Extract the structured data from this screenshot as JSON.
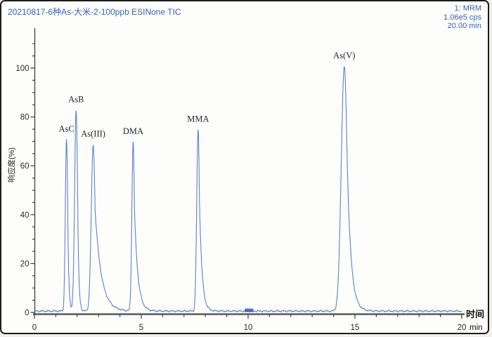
{
  "header": {
    "title": "20210817-6种As-大米-2-100ppb ESINone TIC",
    "info_lines": [
      "1: MRM",
      "1.06e5 cps",
      "20.00 min"
    ]
  },
  "colors": {
    "curve": "#5b82c8",
    "header_text": "#3a62b5",
    "axis": "#5a5a5a",
    "marker": "#3c55b8"
  },
  "chart_data": {
    "type": "line",
    "title": "20210817-6种As-大米-2-100ppb ESINone TIC",
    "experiment": "1: MRM",
    "max_intensity": "1.06e5 cps",
    "run_time": "20.00 min",
    "xlabel": "时间",
    "x_unit": "min",
    "ylabel": "响应度(%)",
    "xlim": [
      0,
      20
    ],
    "ylim": [
      0,
      110
    ],
    "x_major_ticks": [
      0,
      5,
      10,
      15,
      20
    ],
    "x_minor_step": 1,
    "y_major_ticks": [
      0,
      20,
      40,
      60,
      80,
      100
    ],
    "y_minor_step": 5,
    "grid": false,
    "legend_position": "none",
    "baseline_pct": 0.55,
    "peaks": [
      {
        "name": "AsC",
        "rt_min": 1.5,
        "height_pct": 70,
        "sigma": 0.055,
        "tau": 0.05
      },
      {
        "name": "AsB",
        "rt_min": 1.95,
        "height_pct": 82,
        "sigma": 0.07,
        "tau": 0.05
      },
      {
        "name": "As(III)",
        "rt_min": 2.75,
        "height_pct": 68,
        "sigma": 0.09,
        "tau": 0.29
      },
      {
        "name": "DMA",
        "rt_min": 4.62,
        "height_pct": 69,
        "sigma": 0.06,
        "tau": 0.16
      },
      {
        "name": "MMA",
        "rt_min": 7.66,
        "height_pct": 74,
        "sigma": 0.065,
        "tau": 0.12
      },
      {
        "name": "As(V)",
        "rt_min": 14.5,
        "height_pct": 100,
        "sigma": 0.14,
        "tau": 0.18
      }
    ],
    "baseline_marker": {
      "t_min": 9.84,
      "width_min": 0.4
    }
  }
}
